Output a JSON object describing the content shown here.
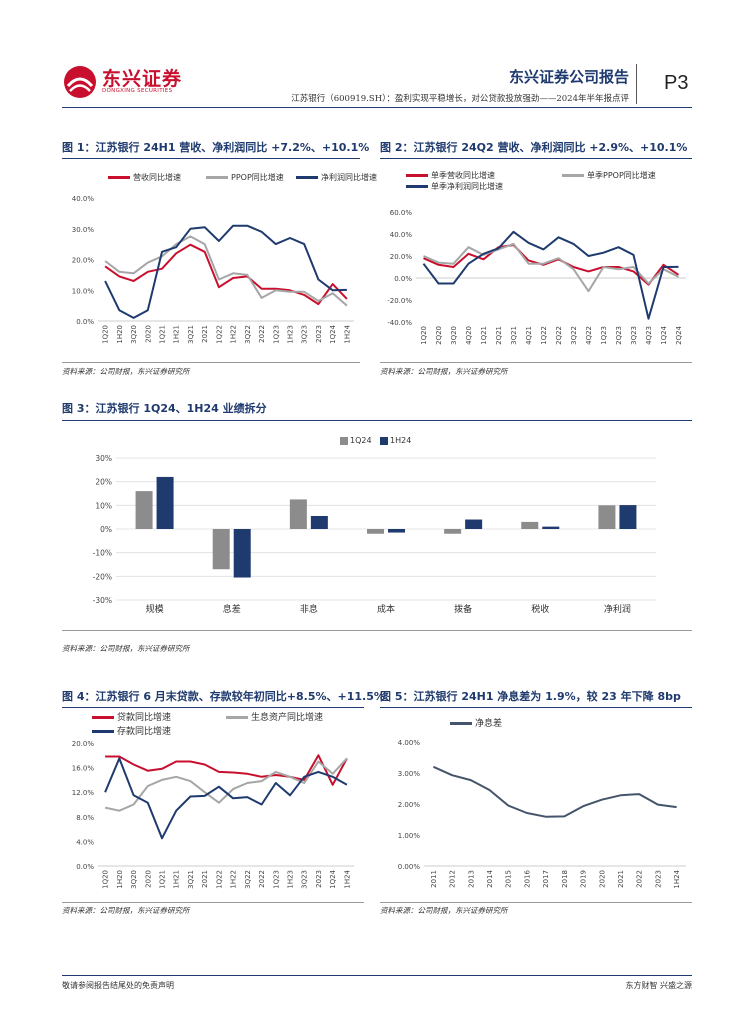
{
  "header": {
    "logo_cn": "东兴证券",
    "logo_en": "DONGXING SECURITIES",
    "report_title": "东兴证券公司报告",
    "subtitle": "江苏银行（600919.SH）：盈利实现平稳增长，对公贷款投放强劲——2024年半年报点评",
    "page": "P3",
    "brand_color": "#c8102e",
    "navy": "#1f3a6e"
  },
  "figures": {
    "fig1": {
      "title": "图 1：江苏银行 24H1 营收、净利润同比 +7.2%、+10.1%",
      "source": "资料来源：公司财报，东兴证券研究所"
    },
    "fig2": {
      "title": "图 2：江苏银行 24Q2 营收、净利润同比 +2.9%、+10.1%",
      "source": "资料来源：公司财报，东兴证券研究所"
    },
    "fig3": {
      "title": "图 3：江苏银行 1Q24、1H24 业绩拆分",
      "source": "资料来源：公司财报，东兴证券研究所"
    },
    "fig4": {
      "title": "图 4：江苏银行 6 月末贷款、存款较年初同比+8.5%、+11.5%",
      "source": "资料来源：公司财报，东兴证券研究所"
    },
    "fig5": {
      "title": "图 5：江苏银行 24H1 净息差为 1.9%，较 23 年下降 8bp",
      "source": "资料来源：公司财报，东兴证券研究所"
    }
  },
  "footer": {
    "left": "敬请参阅报告结尾处的免责声明",
    "right": "东方财智  兴盛之源"
  },
  "chart_data": [
    {
      "id": "fig1",
      "type": "line",
      "categories": [
        "1Q20",
        "1H20",
        "3Q20",
        "2020",
        "1Q21",
        "1H21",
        "3Q21",
        "2021",
        "1Q22",
        "1H22",
        "3Q22",
        "2022",
        "1Q23",
        "1H23",
        "3Q23",
        "2023",
        "1Q24",
        "1H24"
      ],
      "ylim": [
        0,
        40
      ],
      "yticks": [
        "0.0%",
        "10.0%",
        "20.0%",
        "30.0%",
        "40.0%"
      ],
      "series": [
        {
          "name": "营收同比增速",
          "color": "#c8102e",
          "values": [
            17.8,
            14.5,
            13.0,
            16.0,
            17.0,
            22.0,
            24.8,
            22.5,
            11.0,
            14.0,
            14.5,
            10.5,
            10.5,
            10.0,
            8.5,
            5.5,
            12.0,
            7.2
          ]
        },
        {
          "name": "PPOP同比增速",
          "color": "#a6a6a6",
          "values": [
            19.5,
            16.0,
            15.5,
            19.0,
            21.0,
            25.0,
            27.5,
            25.0,
            13.5,
            15.5,
            15.0,
            7.5,
            10.0,
            9.5,
            9.5,
            6.5,
            9.0,
            5.0
          ]
        },
        {
          "name": "净利润同比增速",
          "color": "#1f3a6e",
          "values": [
            13.0,
            3.5,
            1.0,
            3.5,
            22.5,
            24.0,
            30.0,
            30.5,
            26.0,
            31.0,
            31.0,
            29.0,
            25.0,
            27.0,
            25.0,
            13.5,
            10.0,
            10.1
          ]
        }
      ]
    },
    {
      "id": "fig2",
      "type": "line",
      "categories": [
        "1Q20",
        "2Q20",
        "3Q20",
        "4Q20",
        "1Q21",
        "2Q21",
        "3Q21",
        "4Q21",
        "1Q22",
        "2Q22",
        "3Q22",
        "4Q22",
        "1Q23",
        "2Q23",
        "3Q23",
        "4Q23",
        "1Q24",
        "2Q24"
      ],
      "ylim": [
        -40,
        60
      ],
      "yticks": [
        "-40.0%",
        "-20.0%",
        "0.0%",
        "20.0%",
        "40.0%",
        "60.0%"
      ],
      "series": [
        {
          "name": "单季营收同比增速",
          "color": "#c8102e",
          "values": [
            18,
            12,
            10,
            22,
            17,
            28,
            30,
            16,
            12,
            17,
            10,
            6,
            10,
            10,
            6,
            -6,
            12,
            2.9
          ]
        },
        {
          "name": "单季PPOP同比增速",
          "color": "#a6a6a6",
          "values": [
            20,
            14,
            13,
            28,
            21,
            26,
            31,
            13,
            13,
            18,
            8,
            -12,
            10,
            8,
            10,
            -5,
            8,
            1
          ]
        },
        {
          "name": "单季净利润同比增速",
          "color": "#1f3a6e",
          "values": [
            13,
            -5,
            -5,
            13,
            22,
            27,
            42,
            32,
            26,
            37,
            31,
            20,
            23,
            28,
            21,
            -37,
            10,
            10.1
          ]
        }
      ]
    },
    {
      "id": "fig3",
      "type": "bar",
      "categories": [
        "规模",
        "息差",
        "非息",
        "成本",
        "拨备",
        "税收",
        "净利润"
      ],
      "ylim": [
        -30,
        30
      ],
      "yticks": [
        "-30%",
        "-20%",
        "-10%",
        "0%",
        "10%",
        "20%",
        "30%"
      ],
      "series": [
        {
          "name": "1Q24",
          "color": "#8c8c8c",
          "values": [
            16.0,
            -17.0,
            12.5,
            -2.0,
            -2.0,
            3.0,
            10.0
          ]
        },
        {
          "name": "1H24",
          "color": "#1f3a6e",
          "values": [
            22.0,
            -20.5,
            5.5,
            -1.5,
            4.0,
            1.0,
            10.1
          ]
        }
      ]
    },
    {
      "id": "fig4",
      "type": "line",
      "categories": [
        "1Q20",
        "1H20",
        "3Q20",
        "2020",
        "1Q21",
        "1H21",
        "3Q21",
        "2021",
        "1Q22",
        "1H22",
        "3Q22",
        "2022",
        "1Q23",
        "1H23",
        "3Q23",
        "2023",
        "1Q24",
        "1H24"
      ],
      "ylim": [
        0,
        20
      ],
      "yticks": [
        "0.0%",
        "4.0%",
        "8.0%",
        "12.0%",
        "16.0%",
        "20.0%"
      ],
      "series": [
        {
          "name": "贷款同比增速",
          "color": "#c8102e",
          "values": [
            17.8,
            17.8,
            16.5,
            15.5,
            15.8,
            17.0,
            17.0,
            16.5,
            15.3,
            15.2,
            15.0,
            14.5,
            14.8,
            14.5,
            14.0,
            18.0,
            13.2,
            17.5
          ]
        },
        {
          "name": "生息资产同比增速",
          "color": "#a6a6a6",
          "values": [
            9.5,
            9.0,
            10.0,
            13.0,
            14.0,
            14.5,
            13.8,
            12.0,
            10.3,
            12.5,
            13.5,
            13.8,
            15.3,
            14.5,
            13.5,
            17.0,
            15.0,
            17.5
          ]
        },
        {
          "name": "存款同比增速",
          "color": "#1f3a6e",
          "values": [
            12.0,
            17.5,
            11.5,
            10.3,
            4.5,
            9.0,
            11.3,
            11.4,
            12.9,
            11.0,
            11.2,
            10.0,
            13.5,
            11.5,
            14.5,
            15.3,
            14.5,
            13.2
          ]
        }
      ]
    },
    {
      "id": "fig5",
      "type": "line",
      "categories": [
        "2011",
        "2012",
        "2013",
        "2014",
        "2015",
        "2016",
        "2017",
        "2018",
        "2019",
        "2020",
        "2021",
        "2022",
        "2023",
        "1H24"
      ],
      "ylim": [
        0,
        4
      ],
      "yticks": [
        "0.00%",
        "1.00%",
        "2.00%",
        "3.00%",
        "4.00%"
      ],
      "series": [
        {
          "name": "净息差",
          "color": "#44546a",
          "values": [
            3.2,
            2.93,
            2.77,
            2.45,
            1.95,
            1.71,
            1.59,
            1.6,
            1.93,
            2.14,
            2.28,
            2.32,
            1.98,
            1.9
          ]
        }
      ]
    }
  ]
}
